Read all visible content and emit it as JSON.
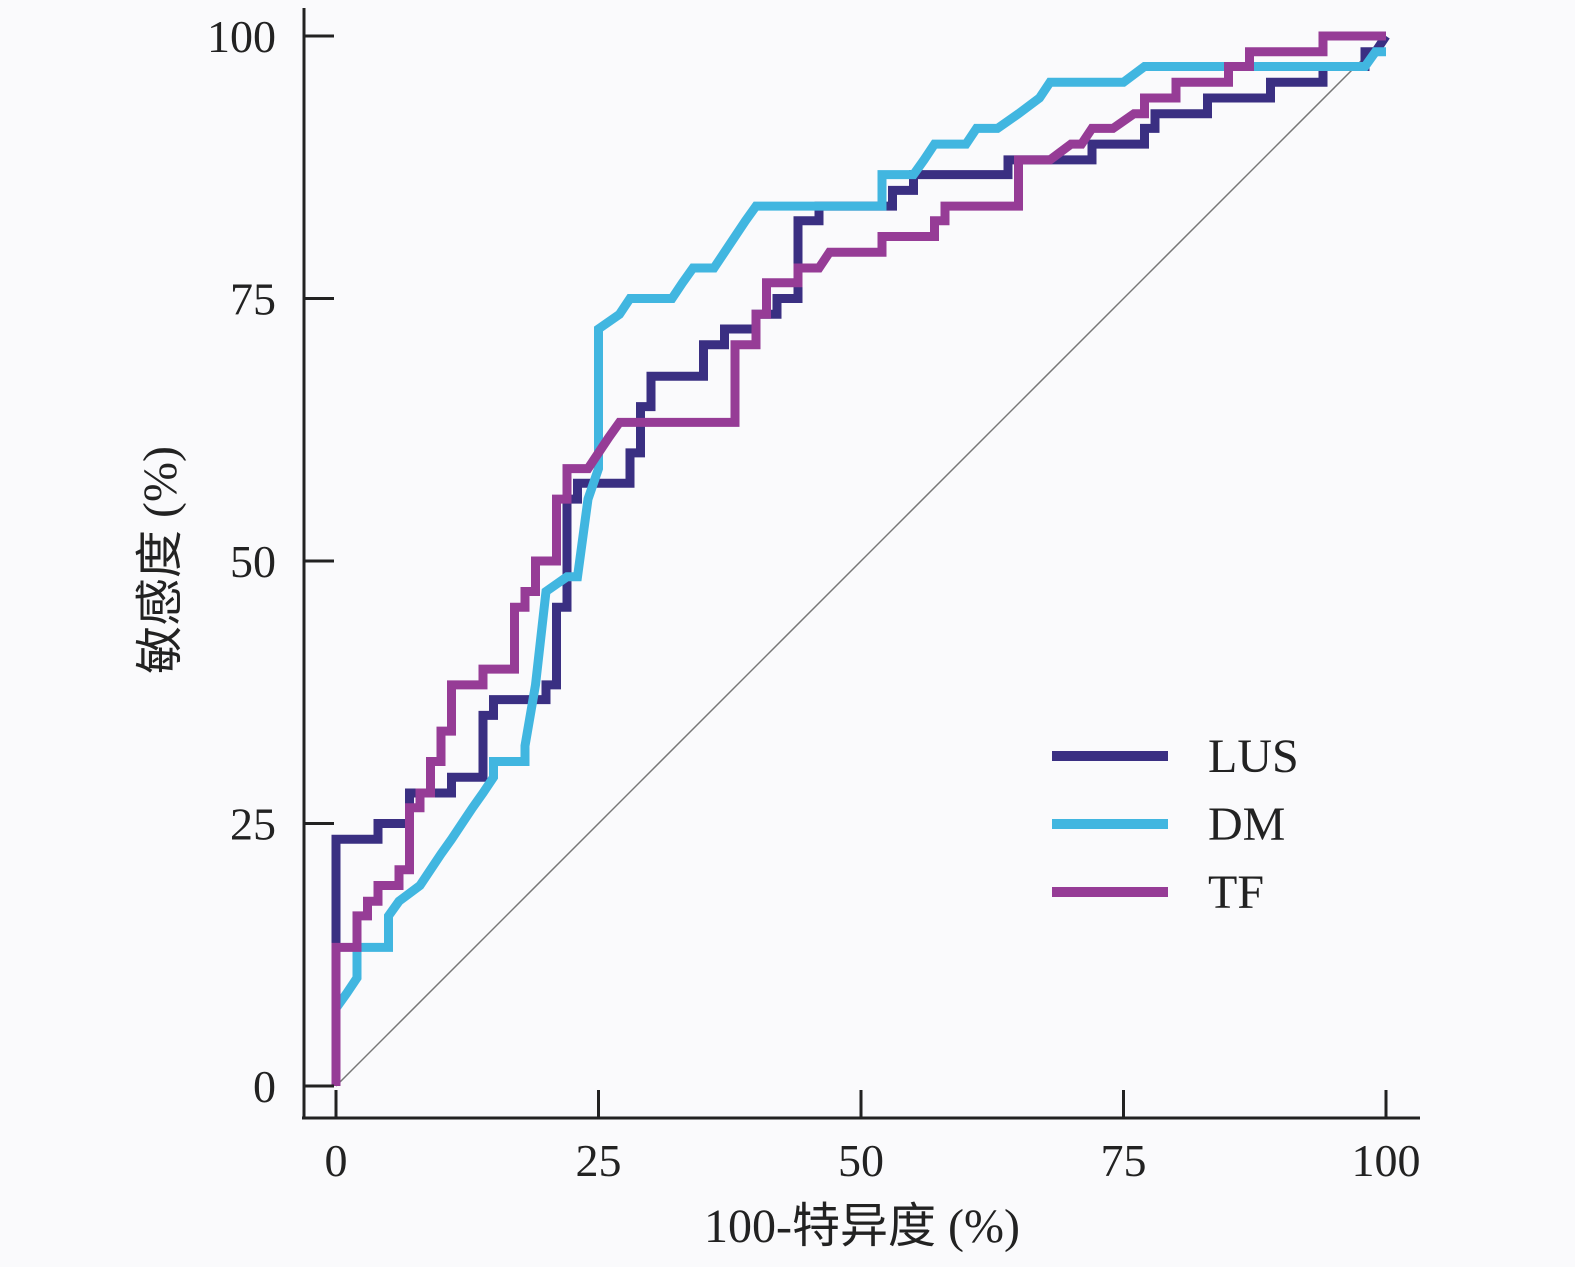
{
  "chart_data": {
    "type": "line",
    "title": "",
    "xlabel": "100-特异度 (%)",
    "ylabel": "敏感度 (%)",
    "xlim": [
      0,
      100
    ],
    "ylim": [
      0,
      100
    ],
    "x_ticks": [
      "0",
      "25",
      "50",
      "75",
      "100"
    ],
    "y_ticks": [
      "0",
      "25",
      "50",
      "75",
      "100"
    ],
    "grid": false,
    "legend_position": "bottom-right",
    "reference_line": {
      "x": [
        0,
        100
      ],
      "y": [
        0,
        100
      ],
      "color": "#777777"
    },
    "series": [
      {
        "name": "LUS",
        "color": "#3a2f82",
        "points": [
          [
            0,
            0
          ],
          [
            0,
            23.5
          ],
          [
            4,
            23.5
          ],
          [
            4,
            25
          ],
          [
            7,
            25
          ],
          [
            7,
            27.9
          ],
          [
            11,
            27.9
          ],
          [
            11,
            29.4
          ],
          [
            14,
            29.4
          ],
          [
            14,
            35.3
          ],
          [
            15,
            35.3
          ],
          [
            15,
            36.8
          ],
          [
            20,
            36.8
          ],
          [
            20,
            38.2
          ],
          [
            21,
            38.2
          ],
          [
            21,
            45.6
          ],
          [
            22,
            45.6
          ],
          [
            22,
            55.9
          ],
          [
            23,
            55.9
          ],
          [
            23,
            57.4
          ],
          [
            28,
            57.4
          ],
          [
            28,
            60.3
          ],
          [
            29,
            60.3
          ],
          [
            29,
            64.7
          ],
          [
            30,
            64.7
          ],
          [
            30,
            67.6
          ],
          [
            35,
            67.6
          ],
          [
            35,
            70.6
          ],
          [
            37,
            70.6
          ],
          [
            37,
            72.1
          ],
          [
            40,
            72.1
          ],
          [
            40,
            73.5
          ],
          [
            42,
            73.5
          ],
          [
            42,
            75
          ],
          [
            44,
            75
          ],
          [
            44,
            82.4
          ],
          [
            46,
            82.4
          ],
          [
            46,
            83.8
          ],
          [
            53,
            83.8
          ],
          [
            53,
            85.3
          ],
          [
            55,
            85.3
          ],
          [
            55,
            86.8
          ],
          [
            64,
            86.8
          ],
          [
            64,
            88.2
          ],
          [
            72,
            88.2
          ],
          [
            72,
            89.7
          ],
          [
            77,
            89.7
          ],
          [
            77,
            91.2
          ],
          [
            78,
            91.2
          ],
          [
            78,
            92.6
          ],
          [
            83,
            92.6
          ],
          [
            83,
            94.1
          ],
          [
            89,
            94.1
          ],
          [
            89,
            95.6
          ],
          [
            94,
            95.6
          ],
          [
            94,
            97.1
          ],
          [
            98,
            97.1
          ],
          [
            98,
            98.5
          ],
          [
            99,
            98.5
          ],
          [
            100,
            100
          ]
        ]
      },
      {
        "name": "DM",
        "color": "#41b6e0",
        "points": [
          [
            0,
            0
          ],
          [
            0,
            7.4
          ],
          [
            1,
            8.8
          ],
          [
            2,
            10.3
          ],
          [
            2,
            13.2
          ],
          [
            5,
            13.2
          ],
          [
            5,
            16.2
          ],
          [
            6,
            17.6
          ],
          [
            8,
            19.1
          ],
          [
            9,
            20.6
          ],
          [
            10,
            22.1
          ],
          [
            11,
            23.5
          ],
          [
            12,
            25
          ],
          [
            13,
            26.5
          ],
          [
            14,
            27.9
          ],
          [
            15,
            29.4
          ],
          [
            15,
            30.9
          ],
          [
            18,
            30.9
          ],
          [
            18,
            32.4
          ],
          [
            19,
            38.2
          ],
          [
            20,
            47.1
          ],
          [
            22,
            48.5
          ],
          [
            23,
            48.5
          ],
          [
            24,
            55.9
          ],
          [
            25,
            58.8
          ],
          [
            25,
            72.1
          ],
          [
            27,
            73.5
          ],
          [
            28,
            75
          ],
          [
            32,
            75
          ],
          [
            33,
            76.5
          ],
          [
            34,
            77.9
          ],
          [
            36,
            77.9
          ],
          [
            37,
            79.4
          ],
          [
            38,
            80.9
          ],
          [
            39,
            82.4
          ],
          [
            40,
            83.8
          ],
          [
            52,
            83.8
          ],
          [
            52,
            86.8
          ],
          [
            55,
            86.8
          ],
          [
            56,
            88.2
          ],
          [
            57,
            89.7
          ],
          [
            60,
            89.7
          ],
          [
            61,
            91.2
          ],
          [
            63,
            91.2
          ],
          [
            65,
            92.6
          ],
          [
            67,
            94.1
          ],
          [
            68,
            95.6
          ],
          [
            75,
            95.6
          ],
          [
            77,
            97.1
          ],
          [
            98,
            97.1
          ],
          [
            99,
            98.5
          ],
          [
            100,
            98.5
          ]
        ]
      },
      {
        "name": "TF",
        "color": "#963c96",
        "points": [
          [
            0,
            0
          ],
          [
            0,
            13.2
          ],
          [
            2,
            13.2
          ],
          [
            2,
            16.2
          ],
          [
            3,
            16.2
          ],
          [
            3,
            17.6
          ],
          [
            4,
            17.6
          ],
          [
            4,
            19.1
          ],
          [
            6,
            19.1
          ],
          [
            6,
            20.6
          ],
          [
            7,
            20.6
          ],
          [
            7,
            26.5
          ],
          [
            8,
            26.5
          ],
          [
            8,
            27.9
          ],
          [
            9,
            27.9
          ],
          [
            9,
            30.9
          ],
          [
            10,
            30.9
          ],
          [
            10,
            33.8
          ],
          [
            11,
            33.8
          ],
          [
            11,
            38.2
          ],
          [
            14,
            38.2
          ],
          [
            14,
            39.7
          ],
          [
            17,
            39.7
          ],
          [
            17,
            45.6
          ],
          [
            18,
            45.6
          ],
          [
            18,
            47.1
          ],
          [
            19,
            47.1
          ],
          [
            19,
            50
          ],
          [
            21,
            50
          ],
          [
            21,
            55.9
          ],
          [
            22,
            55.9
          ],
          [
            22,
            58.8
          ],
          [
            24,
            58.8
          ],
          [
            26,
            61.8
          ],
          [
            27,
            63.2
          ],
          [
            38,
            63.2
          ],
          [
            38,
            70.6
          ],
          [
            40,
            70.6
          ],
          [
            40,
            73.5
          ],
          [
            41,
            73.5
          ],
          [
            41,
            76.5
          ],
          [
            44,
            76.5
          ],
          [
            44,
            77.9
          ],
          [
            46,
            77.9
          ],
          [
            47,
            79.4
          ],
          [
            52,
            79.4
          ],
          [
            52,
            80.9
          ],
          [
            57,
            80.9
          ],
          [
            57,
            82.4
          ],
          [
            58,
            82.4
          ],
          [
            58,
            83.8
          ],
          [
            65,
            83.8
          ],
          [
            65,
            88.2
          ],
          [
            68,
            88.2
          ],
          [
            70,
            89.7
          ],
          [
            71,
            89.7
          ],
          [
            72,
            91.2
          ],
          [
            74,
            91.2
          ],
          [
            76,
            92.6
          ],
          [
            77,
            92.6
          ],
          [
            77,
            94.1
          ],
          [
            80,
            94.1
          ],
          [
            80,
            95.6
          ],
          [
            85,
            95.6
          ],
          [
            85,
            97.1
          ],
          [
            87,
            97.1
          ],
          [
            87,
            98.5
          ],
          [
            94,
            98.5
          ],
          [
            94,
            100
          ],
          [
            100,
            100
          ]
        ]
      }
    ]
  }
}
